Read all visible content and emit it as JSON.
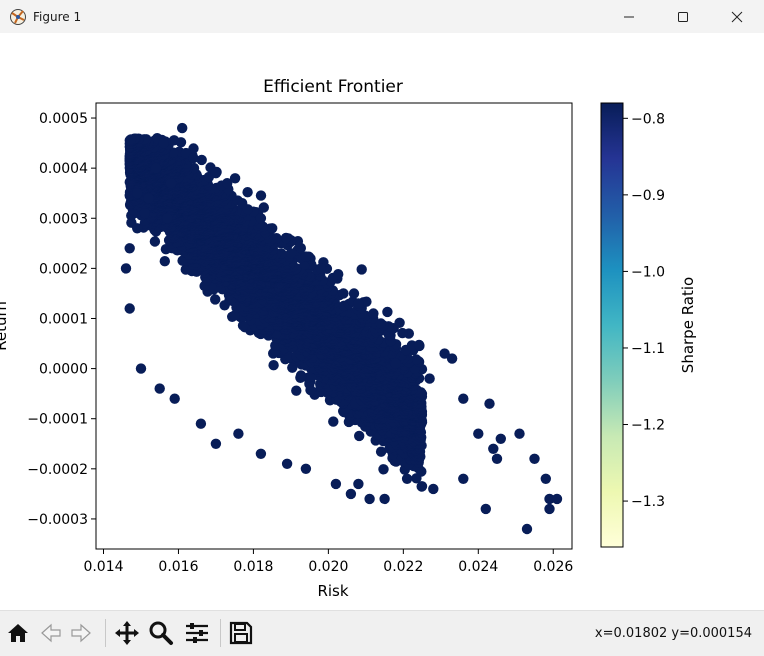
{
  "window": {
    "title": "Figure 1"
  },
  "toolbar": {
    "buttons": [
      "home-icon",
      "back-icon",
      "forward-icon",
      "pan-icon",
      "zoom-icon",
      "configure-icon",
      "save-icon"
    ],
    "coords_readout": "x=0.01802 y=0.000154"
  },
  "chart_data": {
    "type": "scatter",
    "title": "Efficient Frontier",
    "xlabel": "Risk",
    "ylabel": "Return",
    "xlim": [
      0.0138,
      0.0265
    ],
    "ylim": [
      -0.00036,
      0.00053
    ],
    "xticks": [
      0.014,
      0.016,
      0.018,
      0.02,
      0.022,
      0.024,
      0.026
    ],
    "xtick_labels": [
      "0.014",
      "0.016",
      "0.018",
      "0.020",
      "0.022",
      "0.024",
      "0.026"
    ],
    "yticks": [
      -0.0003,
      -0.0002,
      -0.0001,
      0.0,
      0.0001,
      0.0002,
      0.0003,
      0.0004,
      0.0005
    ],
    "ytick_labels": [
      "−0.0003",
      "−0.0002",
      "−0.0001",
      "0.0000",
      "0.0001",
      "0.0002",
      "0.0003",
      "0.0004",
      "0.0005"
    ],
    "colormap": "YlGnBu",
    "colorbar": {
      "label": "Sharpe Ratio",
      "range": [
        -1.36,
        -0.78
      ],
      "ticks": [
        -1.3,
        -1.2,
        -1.1,
        -1.0,
        -0.9,
        -0.8
      ],
      "tick_labels": [
        "−1.3",
        "−1.2",
        "−1.1",
        "−1.0",
        "−0.9",
        "−0.8"
      ]
    },
    "grid": false,
    "series": [
      {
        "note_points": "Each point is [risk, return]; color encodes Sharpe ratio via colormap",
        "points": [
          [
            0.0161,
            0.00048
          ],
          [
            0.0156,
            0.00045
          ],
          [
            0.0162,
            0.00043
          ],
          [
            0.0164,
            0.00042
          ],
          [
            0.017,
            0.00039
          ],
          [
            0.0154,
            0.0004
          ],
          [
            0.0158,
            0.00037
          ],
          [
            0.0152,
            0.00034
          ],
          [
            0.0149,
            0.00035
          ],
          [
            0.0173,
            0.00037
          ],
          [
            0.0177,
            0.00033
          ],
          [
            0.0182,
            0.0003
          ],
          [
            0.0185,
            0.00028
          ],
          [
            0.019,
            0.00023
          ],
          [
            0.0198,
            0.0002
          ],
          [
            0.0204,
            0.00015
          ],
          [
            0.0208,
            0.00013
          ],
          [
            0.0212,
            0.00011
          ],
          [
            0.0214,
            9e-05
          ],
          [
            0.0231,
            3e-05
          ],
          [
            0.0233,
            2e-05
          ],
          [
            0.0218,
            1e-05
          ],
          [
            0.0227,
            -2e-05
          ],
          [
            0.0236,
            -6e-05
          ],
          [
            0.0243,
            -7e-05
          ],
          [
            0.024,
            -0.00013
          ],
          [
            0.0246,
            -0.00014
          ],
          [
            0.0251,
            -0.00013
          ],
          [
            0.0244,
            -0.00016
          ],
          [
            0.0245,
            -0.00018
          ],
          [
            0.0255,
            -0.00018
          ],
          [
            0.0258,
            -0.00022
          ],
          [
            0.0259,
            -0.00026
          ],
          [
            0.0261,
            -0.00026
          ],
          [
            0.0259,
            -0.00028
          ],
          [
            0.0242,
            -0.00028
          ],
          [
            0.0253,
            -0.00032
          ],
          [
            0.0236,
            -0.00022
          ],
          [
            0.0228,
            -0.00024
          ],
          [
            0.0221,
            -0.00022
          ],
          [
            0.0208,
            -0.00023
          ],
          [
            0.0202,
            -0.00023
          ],
          [
            0.0206,
            -0.00025
          ],
          [
            0.0211,
            -0.00026
          ],
          [
            0.0215,
            -0.00026
          ],
          [
            0.0194,
            -0.0002
          ],
          [
            0.0189,
            -0.00019
          ],
          [
            0.0182,
            -0.00017
          ],
          [
            0.0176,
            -0.00013
          ],
          [
            0.017,
            -0.00015
          ],
          [
            0.0166,
            -0.00011
          ],
          [
            0.0159,
            -6e-05
          ],
          [
            0.0155,
            -4e-05
          ],
          [
            0.015,
            0.0
          ],
          [
            0.0147,
            0.00012
          ],
          [
            0.0146,
            0.0002
          ],
          [
            0.0147,
            0.00024
          ],
          [
            0.0149,
            0.00028
          ],
          [
            0.0151,
            0.00031
          ],
          [
            0.0157,
            0.0003
          ]
        ]
      }
    ]
  }
}
